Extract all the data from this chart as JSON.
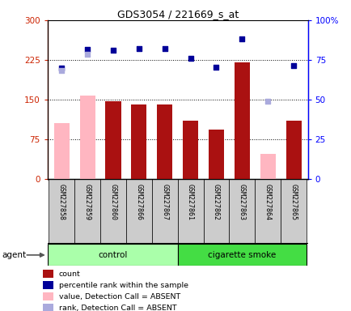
{
  "title": "GDS3054 / 221669_s_at",
  "samples": [
    "GSM227858",
    "GSM227859",
    "GSM227860",
    "GSM227866",
    "GSM227867",
    "GSM227861",
    "GSM227862",
    "GSM227863",
    "GSM227864",
    "GSM227865"
  ],
  "count_values": [
    null,
    null,
    147,
    140,
    140,
    110,
    93,
    220,
    null,
    110
  ],
  "count_absent_values": [
    105,
    158,
    null,
    null,
    null,
    null,
    null,
    null,
    47,
    null
  ],
  "rank_values": [
    210,
    245,
    243,
    247,
    246,
    228,
    211,
    265,
    null,
    214
  ],
  "rank_absent_values": [
    205,
    235,
    null,
    null,
    null,
    null,
    null,
    null,
    147,
    null
  ],
  "ylim_left": [
    0,
    300
  ],
  "ylim_right": [
    0,
    100
  ],
  "yticks_left": [
    0,
    75,
    150,
    225,
    300
  ],
  "yticks_right": [
    0,
    25,
    50,
    75,
    100
  ],
  "ytick_labels_left": [
    "0",
    "75",
    "150",
    "225",
    "300"
  ],
  "ytick_labels_right": [
    "0",
    "25",
    "50",
    "75",
    "100%"
  ],
  "hlines": [
    75,
    150,
    225
  ],
  "n_control": 5,
  "n_smoke": 5,
  "control_label": "control",
  "smoke_label": "cigarette smoke",
  "agent_label": "agent",
  "bar_color_dark": "#aa1111",
  "bar_color_absent": "#ffb6c1",
  "rank_color": "#000099",
  "rank_absent_color": "#aaaadd",
  "control_bg": "#aaffaa",
  "smoke_bg": "#44dd44",
  "label_bg": "#cccccc",
  "plot_bg": "white",
  "legend_items": [
    {
      "color": "#aa1111",
      "label": "count"
    },
    {
      "color": "#000099",
      "label": "percentile rank within the sample"
    },
    {
      "color": "#ffb6c1",
      "label": "value, Detection Call = ABSENT"
    },
    {
      "color": "#aaaadd",
      "label": "rank, Detection Call = ABSENT"
    }
  ]
}
